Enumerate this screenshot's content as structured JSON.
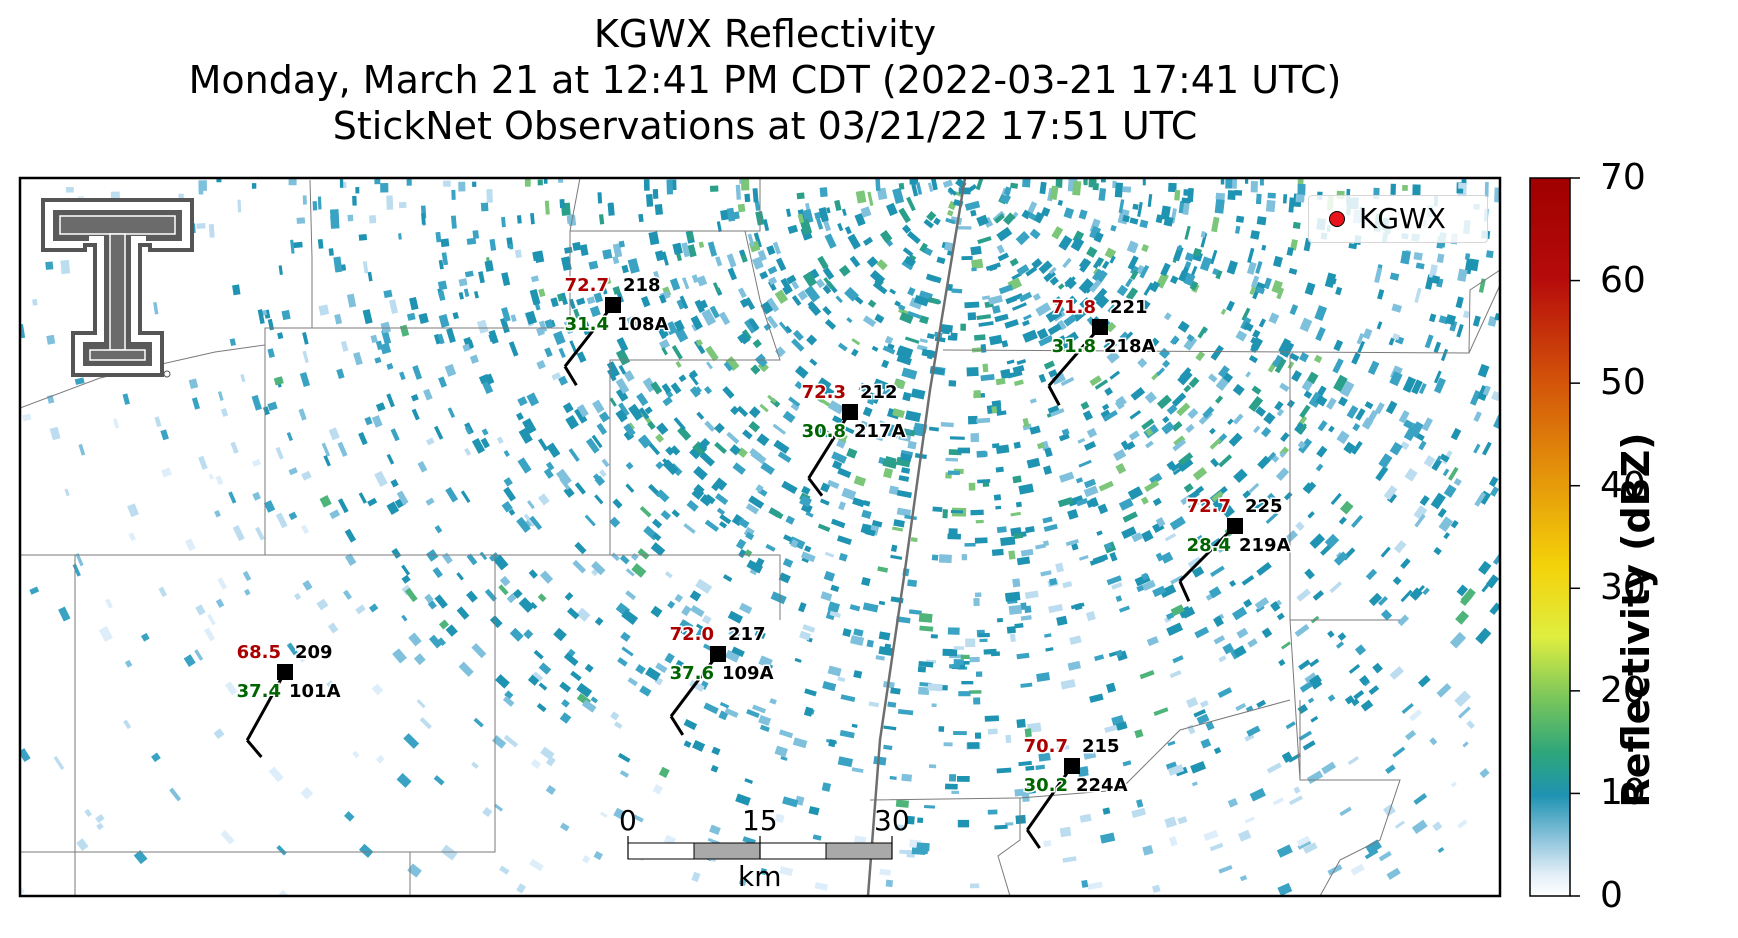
{
  "title": {
    "line1": "KGWX Reflectivity",
    "line2": "Monday, March 21 at 12:41 PM CDT (2022-03-21 17:41 UTC)",
    "line3": "StickNet Observations at 03/21/22 17:51 UTC"
  },
  "legend": {
    "label": "KGWX",
    "marker_color": "#e8141b"
  },
  "colorbar": {
    "label": "Reflectivity (dBZ)",
    "ticks": [
      "70",
      "60",
      "50",
      "40",
      "30",
      "20",
      "10",
      "0"
    ],
    "vmin": 0,
    "vmax": 70,
    "stops": [
      "#ffffff",
      "#bcd9ea",
      "#1f93b2",
      "#2ea67a",
      "#7fc85a",
      "#dfee40",
      "#f4d20a",
      "#e5970a",
      "#d2520a",
      "#b60b0b",
      "#a00000"
    ]
  },
  "scale_bar": {
    "labels": [
      "0",
      "15",
      "30"
    ],
    "unit": "km"
  },
  "logo": {
    "icon": "texas-tech-double-t-logo"
  },
  "stations": [
    {
      "id": "108A",
      "temp": "72.7",
      "dew": "31.4",
      "dir": "218"
    },
    {
      "id": "218A",
      "temp": "71.8",
      "dew": "31.8",
      "dir": "221"
    },
    {
      "id": "217A",
      "temp": "72.3",
      "dew": "30.8",
      "dir": "212"
    },
    {
      "id": "219A",
      "temp": "72.7",
      "dew": "28.4",
      "dir": "225"
    },
    {
      "id": "109A",
      "temp": "72.0",
      "dew": "37.6",
      "dir": "217"
    },
    {
      "id": "101A",
      "temp": "68.5",
      "dew": "37.4",
      "dir": "209"
    },
    {
      "id": "224A",
      "temp": "70.7",
      "dew": "30.2",
      "dir": "215"
    }
  ],
  "colors": {
    "temp_text": "#aa0000",
    "dew_text": "#006400",
    "label_text": "#000000"
  }
}
